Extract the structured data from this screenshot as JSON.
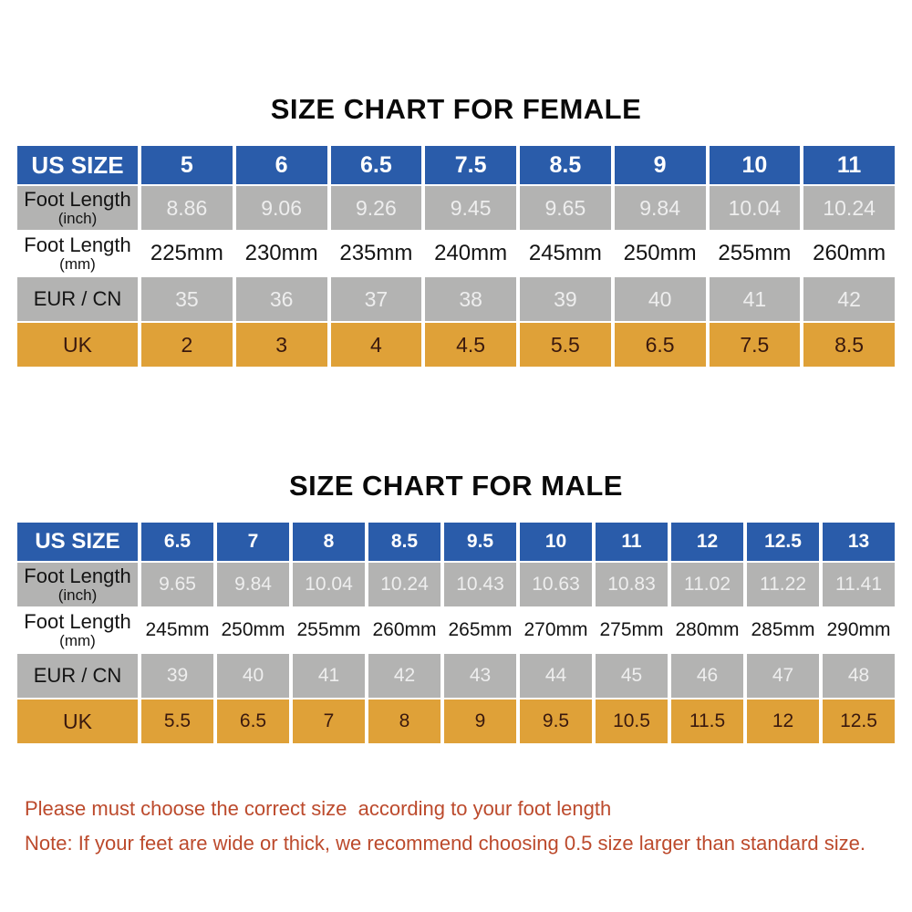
{
  "colors": {
    "header_blue": "#2a5caa",
    "header_text": "#ffffff",
    "row_gray": "#b3b3b2",
    "gray_value_text": "#eeeeee",
    "row_gold": "#dfa138",
    "gold_text": "#3a190e",
    "label_text": "#141414",
    "title_text": "#0a0a0a",
    "note_text": "#bc4a2c"
  },
  "chart_data": [
    {
      "type": "table",
      "id": "female",
      "title": "SIZE CHART FOR FEMALE",
      "header": {
        "label": "US SIZE",
        "sizes": [
          "5",
          "6",
          "6.5",
          "7.5",
          "8.5",
          "9",
          "10",
          "11"
        ]
      },
      "rows": [
        {
          "name": "foot-length-inch",
          "label": "Foot Length",
          "sublabel": "(inch)",
          "style": "gray",
          "values": [
            "8.86",
            "9.06",
            "9.26",
            "9.45",
            "9.65",
            "9.84",
            "10.04",
            "10.24"
          ]
        },
        {
          "name": "foot-length-mm",
          "label": "Foot Length",
          "sublabel": "(mm)",
          "style": "white",
          "values": [
            "225mm",
            "230mm",
            "235mm",
            "240mm",
            "245mm",
            "250mm",
            "255mm",
            "260mm"
          ]
        },
        {
          "name": "eur-cn",
          "label": "EUR / CN",
          "sublabel": "",
          "style": "gray",
          "values": [
            "35",
            "36",
            "37",
            "38",
            "39",
            "40",
            "41",
            "42"
          ]
        },
        {
          "name": "uk",
          "label": "UK",
          "sublabel": "",
          "style": "gold",
          "values": [
            "2",
            "3",
            "4",
            "4.5",
            "5.5",
            "6.5",
            "7.5",
            "8.5"
          ]
        }
      ]
    },
    {
      "type": "table",
      "id": "male",
      "title": "SIZE CHART FOR MALE",
      "header": {
        "label": "US SIZE",
        "sizes": [
          "6.5",
          "7",
          "8",
          "8.5",
          "9.5",
          "10",
          "11",
          "12",
          "12.5",
          "13"
        ]
      },
      "rows": [
        {
          "name": "foot-length-inch",
          "label": "Foot Length",
          "sublabel": "(inch)",
          "style": "gray",
          "values": [
            "9.65",
            "9.84",
            "10.04",
            "10.24",
            "10.43",
            "10.63",
            "10.83",
            "11.02",
            "11.22",
            "11.41"
          ]
        },
        {
          "name": "foot-length-mm",
          "label": "Foot Length",
          "sublabel": "(mm)",
          "style": "white",
          "values": [
            "245mm",
            "250mm",
            "255mm",
            "260mm",
            "265mm",
            "270mm",
            "275mm",
            "280mm",
            "285mm",
            "290mm"
          ]
        },
        {
          "name": "eur-cn",
          "label": "EUR / CN",
          "sublabel": "",
          "style": "gray",
          "values": [
            "39",
            "40",
            "41",
            "42",
            "43",
            "44",
            "45",
            "46",
            "47",
            "48"
          ]
        },
        {
          "name": "uk",
          "label": "UK",
          "sublabel": "",
          "style": "gold",
          "values": [
            "5.5",
            "6.5",
            "7",
            "8",
            "9",
            "9.5",
            "10.5",
            "11.5",
            "12",
            "12.5"
          ]
        }
      ]
    }
  ],
  "notes": {
    "line1": "Please must choose the correct size  according to your foot length",
    "line2": "Note: If your feet are wide or thick, we recommend choosing 0.5 size larger than standard size."
  }
}
